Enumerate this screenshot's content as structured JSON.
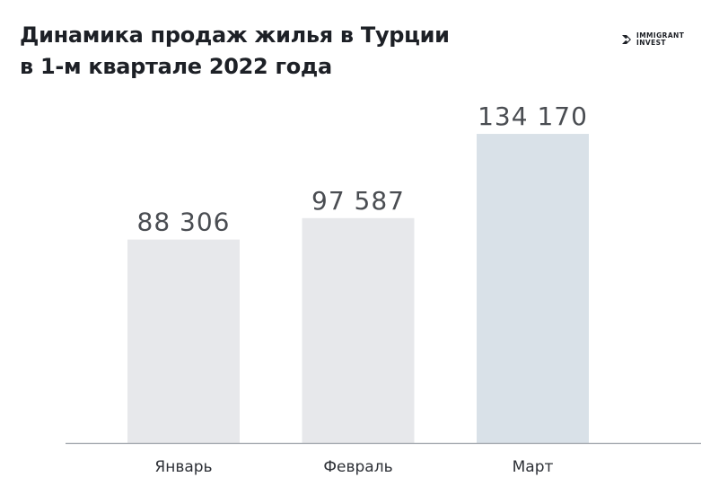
{
  "title": {
    "line1": "Динамика продаж жилья в Турции",
    "line2": "в 1-м квартале 2022 года"
  },
  "logo": {
    "line1": "IMMIGRANT",
    "line2": "INVEST"
  },
  "chart_data": {
    "type": "bar",
    "title": "Динамика продаж жилья в Турции в 1-м квартале 2022 года",
    "categories": [
      "Январь",
      "Февраль",
      "Март"
    ],
    "values": [
      88306,
      97587,
      134170
    ],
    "value_labels": [
      "88 306",
      "97 587",
      "134 170"
    ],
    "bar_colors": [
      "#e7e8eb",
      "#e7e8eb",
      "#d9e1e8"
    ],
    "ylim": [
      0,
      149000
    ],
    "grid": false,
    "legend": "none",
    "xlabel": "",
    "ylabel": ""
  }
}
